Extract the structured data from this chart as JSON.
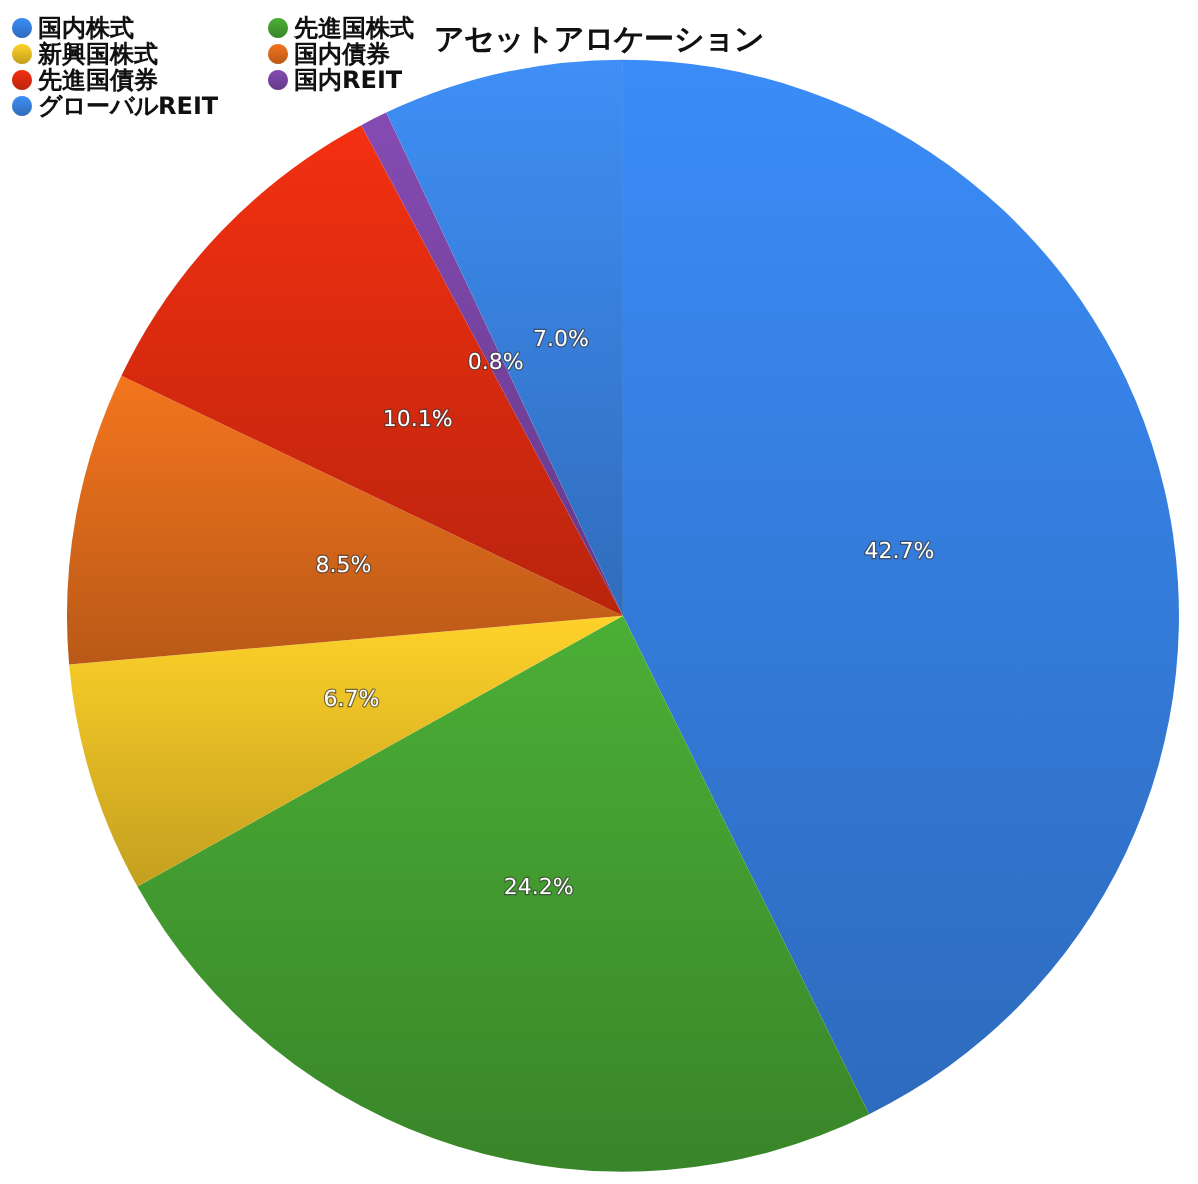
{
  "chart_data": {
    "type": "pie",
    "title": "アセットアロケーション",
    "categories": [
      "国内株式",
      "先進国株式",
      "新興国株式",
      "国内債券",
      "先進国債券",
      "国内REIT",
      "グローバルREIT"
    ],
    "values": [
      42.7,
      24.2,
      6.7,
      8.5,
      10.1,
      0.8,
      7.0
    ],
    "colors": [
      "#3782e6",
      "#45a232",
      "#eec226",
      "#e26c1c",
      "#e22c10",
      "#7b45a6",
      "#3a84e4"
    ],
    "value_labels": [
      "42.7%",
      "24.2%",
      "6.7%",
      "8.5%",
      "10.1%",
      "0.8%",
      "7.0%"
    ],
    "legend": "top left"
  }
}
